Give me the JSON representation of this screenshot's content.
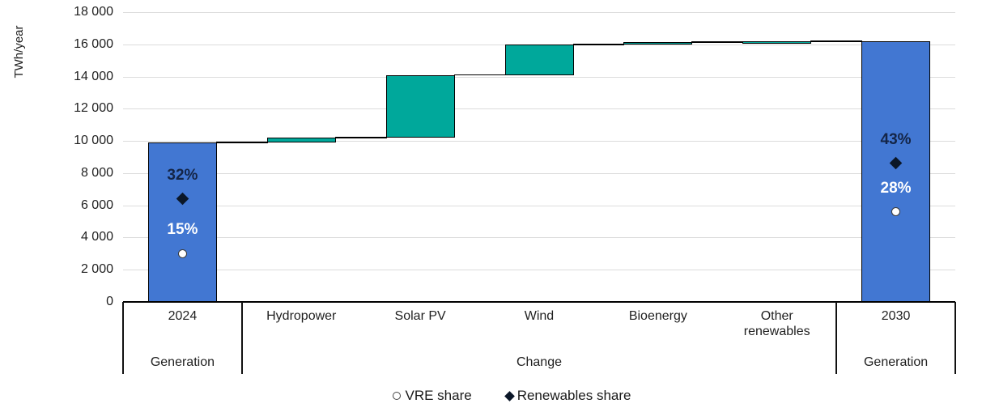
{
  "chart_data": {
    "type": "bar",
    "subtype": "waterfall",
    "title": "",
    "y_axis": {
      "title": "TWh/year",
      "min": 0,
      "max": 18000,
      "tick_step": 2000,
      "ticks": [
        {
          "value": 0,
          "label": "0"
        },
        {
          "value": 2000,
          "label": "2 000"
        },
        {
          "value": 4000,
          "label": "4 000"
        },
        {
          "value": 6000,
          "label": "6 000"
        },
        {
          "value": 8000,
          "label": "8 000"
        },
        {
          "value": 10000,
          "label": "10 000"
        },
        {
          "value": 12000,
          "label": "12 000"
        },
        {
          "value": 14000,
          "label": "14 000"
        },
        {
          "value": 16000,
          "label": "16 000"
        },
        {
          "value": 18000,
          "label": "18 000"
        }
      ]
    },
    "categories": [
      "2024",
      "Hydropower",
      "Solar PV",
      "Wind",
      "Bioenergy",
      "Other renewables",
      "2030"
    ],
    "bars": [
      {
        "category": "2024",
        "role": "total",
        "base": 0,
        "top": 9900,
        "value": 9900,
        "color": "blue"
      },
      {
        "category": "Hydropower",
        "role": "increase",
        "base": 9900,
        "top": 10200,
        "value": 300,
        "color": "teal"
      },
      {
        "category": "Solar PV",
        "role": "increase",
        "base": 10200,
        "top": 14100,
        "value": 3900,
        "color": "teal"
      },
      {
        "category": "Wind",
        "role": "increase",
        "base": 14100,
        "top": 16000,
        "value": 1900,
        "color": "teal"
      },
      {
        "category": "Bioenergy",
        "role": "increase",
        "base": 16000,
        "top": 16150,
        "value": 150,
        "color": "teal"
      },
      {
        "category": "Other renewables",
        "role": "increase",
        "base": 16150,
        "top": 16200,
        "value": 50,
        "color": "teal"
      },
      {
        "category": "2030",
        "role": "total",
        "base": 0,
        "top": 16200,
        "value": 16200,
        "color": "blue"
      }
    ],
    "share_markers": [
      {
        "bar": "2024",
        "series": "Renewables share",
        "shape": "diamond",
        "label": "32%",
        "pct": 32,
        "label_style": "navy"
      },
      {
        "bar": "2024",
        "series": "VRE share",
        "shape": "circle",
        "label": "15%",
        "pct": 15,
        "label_style": "white"
      },
      {
        "bar": "2030",
        "series": "Renewables share",
        "shape": "diamond",
        "label": "43%",
        "pct": 43,
        "label_style": "navy"
      },
      {
        "bar": "2030",
        "series": "VRE share",
        "shape": "circle",
        "label": "28%",
        "pct": 28,
        "label_style": "white"
      }
    ],
    "groups": [
      {
        "label": "Generation",
        "from": 0,
        "to": 1
      },
      {
        "label": "Change",
        "from": 1,
        "to": 6
      },
      {
        "label": "Generation",
        "from": 6,
        "to": 7
      }
    ],
    "legend": [
      {
        "shape": "circle",
        "label": "VRE share"
      },
      {
        "shape": "diamond",
        "label": "Renewables share"
      }
    ],
    "grid": true,
    "legend_position": "bottom"
  },
  "colors": {
    "bar_blue": "#4277d2",
    "bar_teal": "#00a89b",
    "bar_border": "#000000",
    "gridline": "#dcdcdc",
    "axis_text": "#1f1f1f",
    "pct_navy": "#142547",
    "pct_white": "#ffffff",
    "marker_dark": "#0b1728",
    "marker_circle_fill": "#ffffff"
  }
}
